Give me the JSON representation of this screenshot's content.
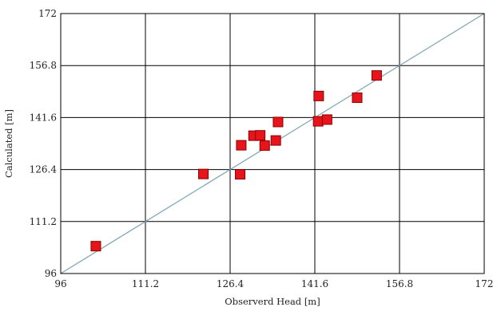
{
  "chart_data": {
    "type": "scatter",
    "title": "",
    "xlabel": "Observerd Head [m]",
    "ylabel": "Calculated [m]",
    "xlim": [
      96,
      172
    ],
    "ylim": [
      96,
      172
    ],
    "x_ticks": [
      96,
      111.2,
      126.4,
      141.6,
      156.8,
      172
    ],
    "y_ticks": [
      96,
      111.2,
      126.4,
      141.6,
      156.8,
      172
    ],
    "x_tick_labels": [
      "96",
      "111.2",
      "126.4",
      "141.6",
      "156.8",
      "172"
    ],
    "y_tick_labels": [
      "96",
      "111.2",
      "126.4",
      "141.6",
      "156.8",
      "172"
    ],
    "grid": true,
    "reference_line": {
      "type": "identity",
      "color": "#7aa5b0"
    },
    "marker": {
      "shape": "square",
      "color": "#e8141c",
      "edge": "#8b0000"
    },
    "points": [
      {
        "x": 102.3,
        "y": 104.0
      },
      {
        "x": 121.6,
        "y": 125.1
      },
      {
        "x": 128.2,
        "y": 125.0
      },
      {
        "x": 128.4,
        "y": 133.5
      },
      {
        "x": 130.6,
        "y": 136.3
      },
      {
        "x": 131.8,
        "y": 136.4
      },
      {
        "x": 132.6,
        "y": 133.4
      },
      {
        "x": 134.6,
        "y": 134.9
      },
      {
        "x": 135.0,
        "y": 140.3
      },
      {
        "x": 142.2,
        "y": 140.5
      },
      {
        "x": 142.3,
        "y": 147.9
      },
      {
        "x": 143.8,
        "y": 141.0
      },
      {
        "x": 149.2,
        "y": 147.4
      },
      {
        "x": 152.7,
        "y": 153.9
      }
    ]
  }
}
